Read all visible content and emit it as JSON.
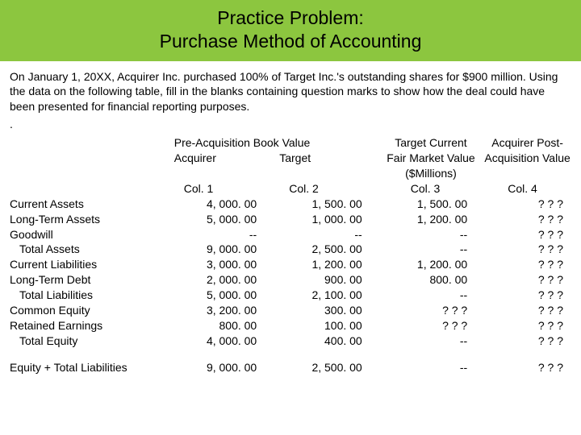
{
  "title_line1": "Practice Problem:",
  "title_line2": "Purchase Method of Accounting",
  "intro": "On January 1, 20XX, Acquirer Inc. purchased 100% of Target Inc.'s outstanding shares for $900 million. Using the data on the following table, fill in the blanks containing question marks to show how the deal could have been presented for financial reporting purposes.",
  "dot": ".",
  "headers": {
    "preacq": "Pre-Acquisition Book Value",
    "tcurrent": "Target Current",
    "apost": "Acquirer Post-",
    "acquirer": "Acquirer",
    "target": "Target",
    "fmv": "Fair Market Value",
    "apv": "Acquisition Value",
    "millions": "($Millions)",
    "col1": "Col. 1",
    "col2": "Col. 2",
    "col3": "Col. 3",
    "col4": "Col. 4"
  },
  "rows": [
    {
      "label": "Current Assets",
      "c1": "4, 000. 00",
      "c2": "1, 500. 00",
      "c3": "1, 500. 00",
      "c4": "? ? ?",
      "indent": false
    },
    {
      "label": "Long-Term Assets",
      "c1": "5, 000. 00",
      "c2": "1, 000. 00",
      "c3": "1, 200. 00",
      "c4": "? ? ?",
      "indent": false
    },
    {
      "label": "Goodwill",
      "c1": "--",
      "c2": "--",
      "c3": "--",
      "c4": "? ? ?",
      "indent": false
    },
    {
      "label": "Total Assets",
      "c1": "9, 000. 00",
      "c2": "2, 500. 00",
      "c3": "--",
      "c4": "? ? ?",
      "indent": true
    },
    {
      "label": "Current Liabilities",
      "c1": "3, 000. 00",
      "c2": "1, 200. 00",
      "c3": "1, 200. 00",
      "c4": "? ? ?",
      "indent": false
    },
    {
      "label": "Long-Term Debt",
      "c1": "2, 000. 00",
      "c2": "900. 00",
      "c3": "800. 00",
      "c4": "? ? ?",
      "indent": false
    },
    {
      "label": "Total Liabilities",
      "c1": "5, 000. 00",
      "c2": "2, 100. 00",
      "c3": "--",
      "c4": "? ? ?",
      "indent": true
    },
    {
      "label": "Common Equity",
      "c1": "3, 200. 00",
      "c2": "300. 00",
      "c3": "? ? ?",
      "c4": "? ? ?",
      "indent": false
    },
    {
      "label": "Retained Earnings",
      "c1": "800. 00",
      "c2": "100. 00",
      "c3": "? ? ?",
      "c4": "? ? ?",
      "indent": false
    },
    {
      "label": "Total Equity",
      "c1": "4, 000. 00",
      "c2": "400. 00",
      "c3": "--",
      "c4": "? ? ?",
      "indent": true
    }
  ],
  "footer": {
    "label": "Equity + Total Liabilities",
    "c1": "9, 000. 00",
    "c2": "2, 500. 00",
    "c3": "--",
    "c4": "? ? ?"
  }
}
